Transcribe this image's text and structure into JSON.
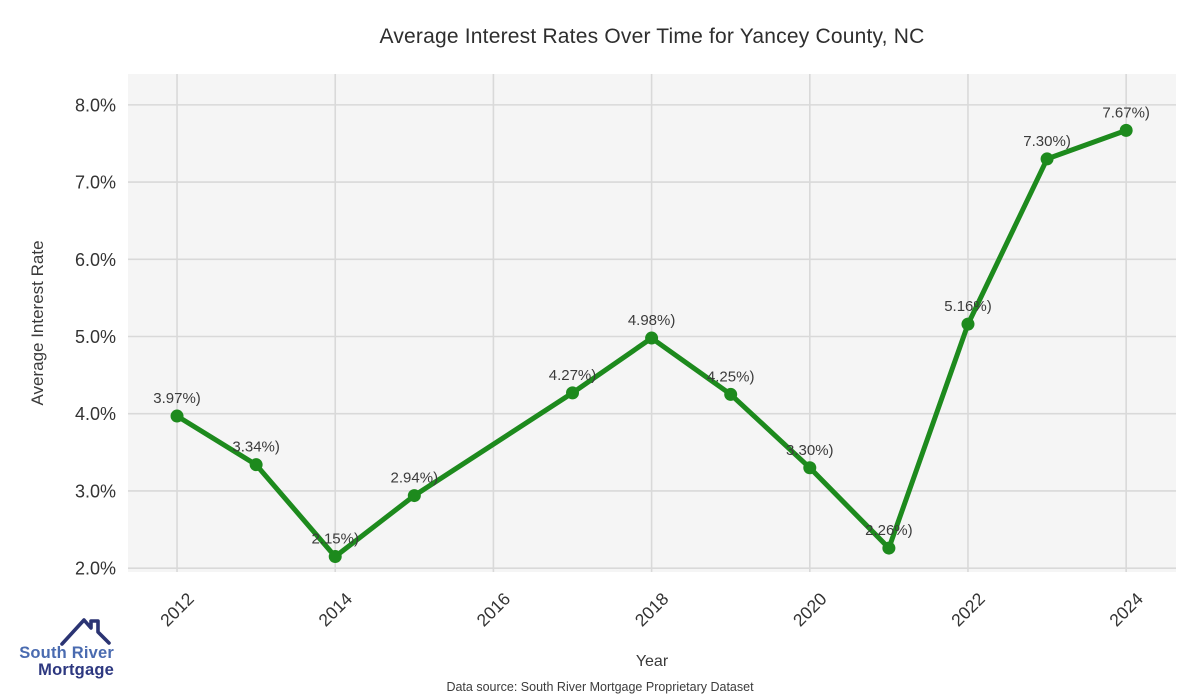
{
  "title": "Average Interest Rates Over Time for Yancey County, NC",
  "footer": {
    "source": "Data source: South River Mortgage Proprietary Dataset"
  },
  "logo": {
    "name_top": "South River",
    "name_bottom": "Mortgage"
  },
  "chart_data": {
    "type": "line",
    "title": "Average Interest Rates Over Time for Yancey County, NC",
    "xlabel": "Year",
    "ylabel": "Average Interest Rate",
    "x": [
      2012,
      2013,
      2014,
      2015,
      2017,
      2018,
      2019,
      2020,
      2021,
      2022,
      2023,
      2024
    ],
    "values": [
      3.97,
      3.34,
      2.15,
      2.94,
      4.27,
      4.98,
      4.25,
      3.3,
      2.26,
      5.16,
      7.3,
      7.67
    ],
    "point_labels": [
      "3.97%)",
      "3.34%)",
      "2.15%)",
      "2.94%)",
      "4.27%)",
      "4.98%)",
      "4.25%)",
      "3.30%)",
      "2.26%)",
      "5.16%)",
      "7.30%)",
      "7.67%)"
    ],
    "xticks": [
      2012,
      2014,
      2016,
      2018,
      2020,
      2022,
      2024
    ],
    "xtick_labels": [
      "2012",
      "2014",
      "2016",
      "2018",
      "2020",
      "2022",
      "2024"
    ],
    "yticks": [
      2,
      3,
      4,
      5,
      6,
      7,
      8
    ],
    "ytick_labels": [
      "2.0%",
      "3.0%",
      "4.0%",
      "5.0%",
      "6.0%",
      "7.0%",
      "8.0%"
    ],
    "xlim": [
      2011.38,
      2024.63
    ],
    "ylim": [
      1.95,
      8.4
    ],
    "grid": true,
    "legend": false,
    "line_color": "#1d8a1d",
    "line_width": 5,
    "marker_radius": 6.5,
    "plot_bg": "#f5f5f5",
    "grid_color": "#d9d9d9",
    "tick_color": "#333333",
    "point_label_color": "#3b3b3b"
  }
}
